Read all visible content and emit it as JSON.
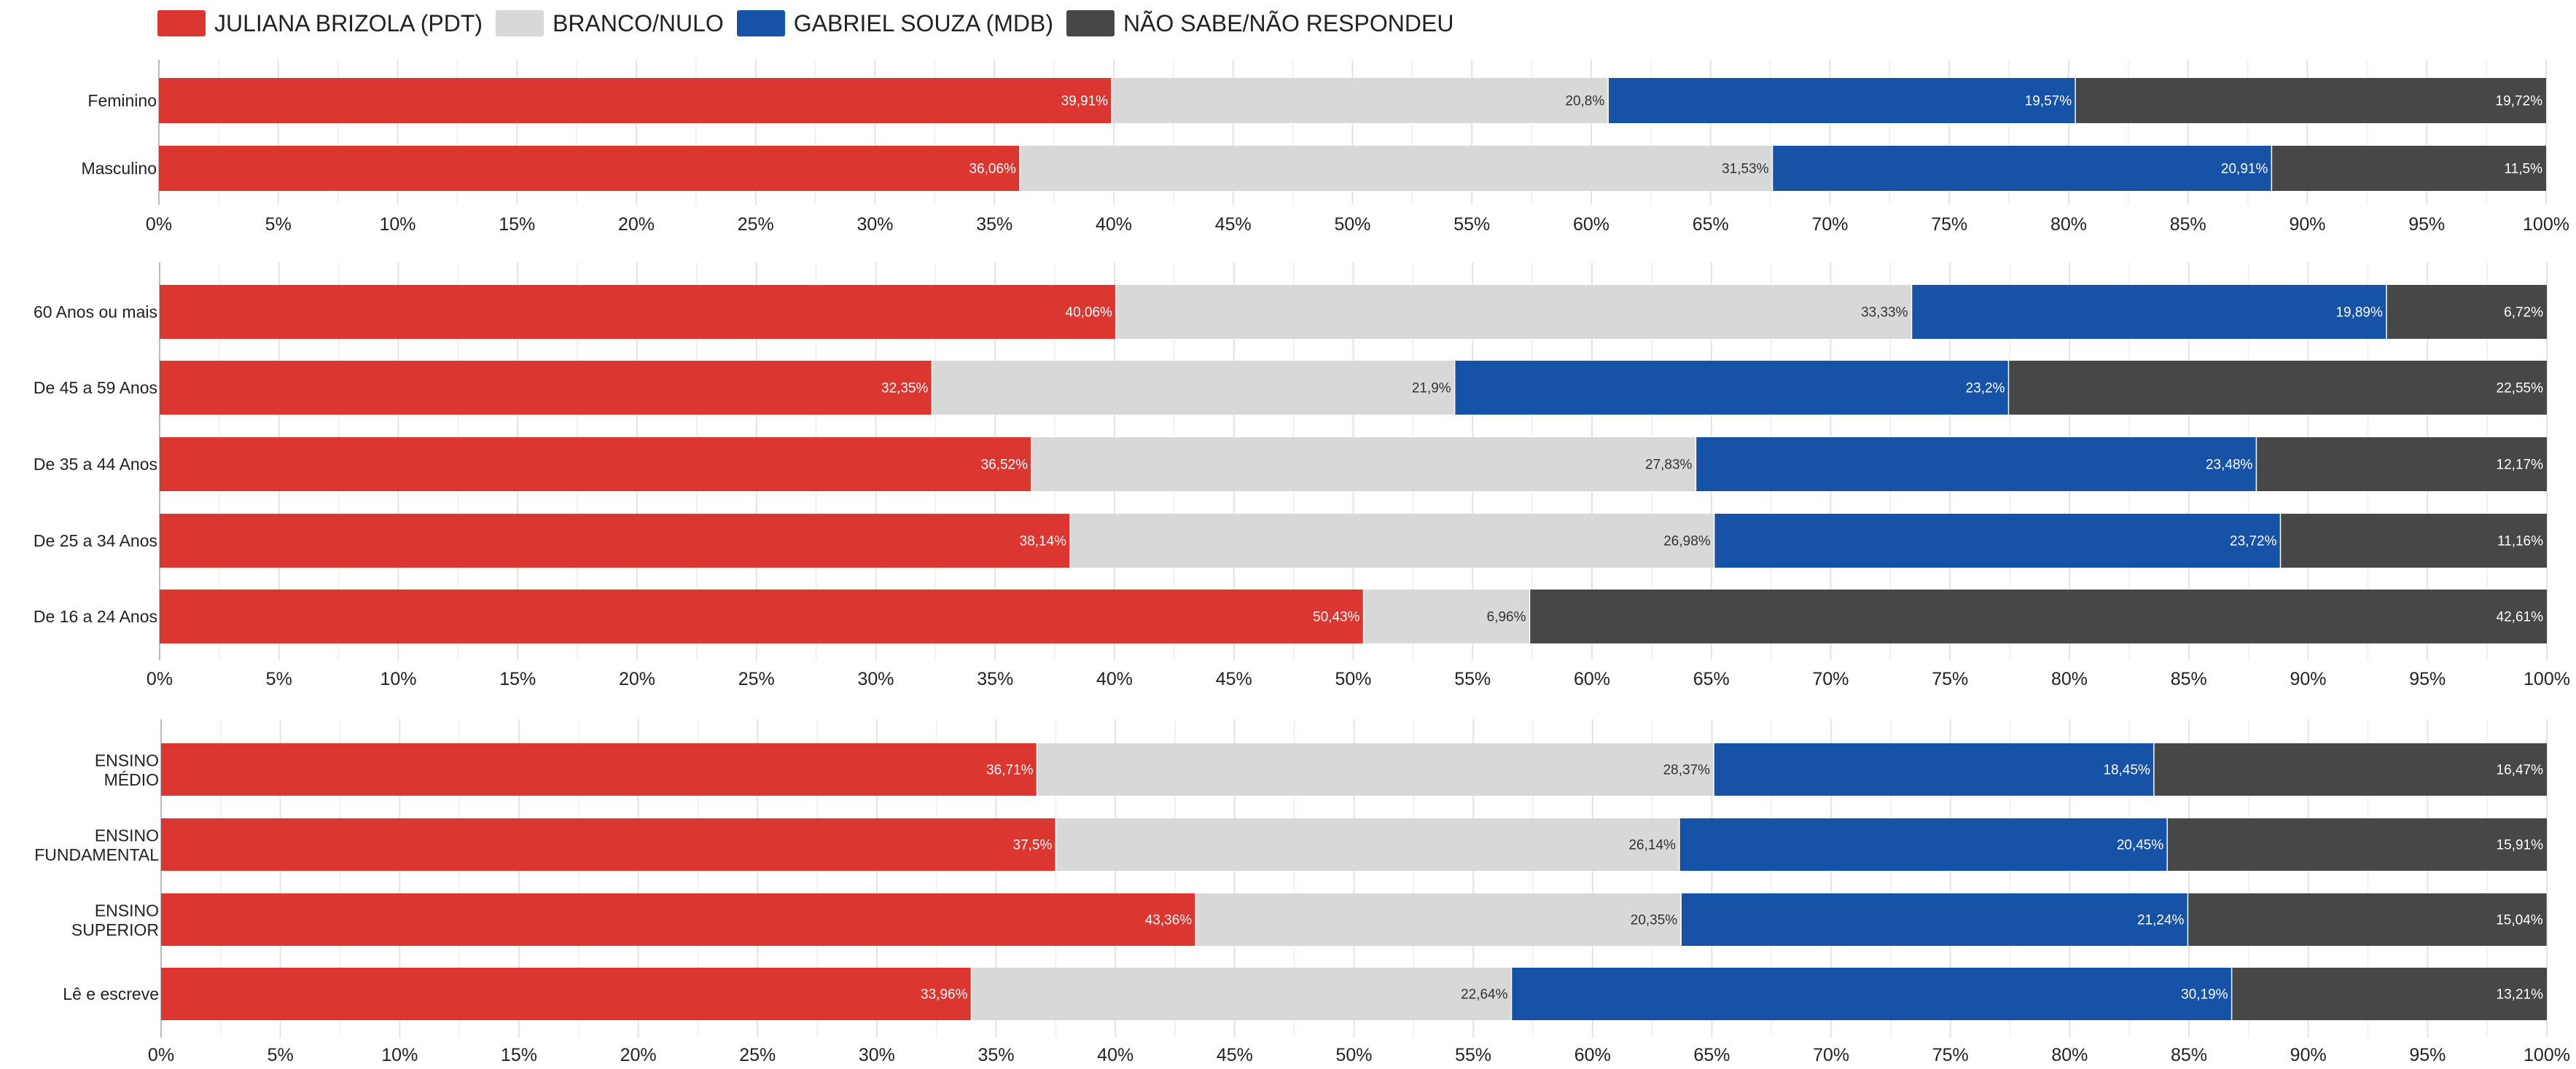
{
  "legend": {
    "items": [
      {
        "label": "JULIANA BRIZOLA (PDT)",
        "color": "#DC3630"
      },
      {
        "label": "BRANCO/NULO",
        "color": "#D8D8D8"
      },
      {
        "label": "GABRIEL SOUZA (MDB)",
        "color": "#1653A7"
      },
      {
        "label": "NÃO SABE/NÃO RESPONDEU",
        "color": "#474747"
      }
    ]
  },
  "chart_data": [
    {
      "type": "bar",
      "orientation": "horizontal",
      "stacked": true,
      "categories": [
        "Feminino",
        "Masculino"
      ],
      "series": [
        {
          "name": "JULIANA BRIZOLA (PDT)",
          "values": [
            39.91,
            36.06
          ],
          "labels": [
            "39,91%",
            "36,06%"
          ]
        },
        {
          "name": "BRANCO/NULO",
          "values": [
            20.8,
            31.53
          ],
          "labels": [
            "20,8%",
            "31,53%"
          ]
        },
        {
          "name": "GABRIEL SOUZA (MDB)",
          "values": [
            19.57,
            20.91
          ],
          "labels": [
            "19,57%",
            "20,91%"
          ]
        },
        {
          "name": "NÃO SABE/NÃO RESPONDEU",
          "values": [
            19.72,
            11.5
          ],
          "labels": [
            "19,72%",
            "11,5%"
          ]
        }
      ],
      "xlim": [
        0,
        100
      ],
      "xticks": [
        "0%",
        "5%",
        "10%",
        "15%",
        "20%",
        "25%",
        "30%",
        "35%",
        "40%",
        "45%",
        "50%",
        "55%",
        "60%",
        "65%",
        "70%",
        "75%",
        "80%",
        "85%",
        "90%",
        "95%",
        "100%"
      ],
      "grid": true
    },
    {
      "type": "bar",
      "orientation": "horizontal",
      "stacked": true,
      "categories": [
        "60 Anos ou mais",
        "De 45 a 59 Anos",
        "De 35 a 44 Anos",
        "De 25 a 34 Anos",
        "De 16 a 24 Anos"
      ],
      "series": [
        {
          "name": "JULIANA BRIZOLA (PDT)",
          "values": [
            40.06,
            32.35,
            36.52,
            38.14,
            50.43
          ],
          "labels": [
            "40,06%",
            "32,35%",
            "36,52%",
            "38,14%",
            "50,43%"
          ]
        },
        {
          "name": "BRANCO/NULO",
          "values": [
            33.33,
            21.9,
            27.83,
            26.98,
            6.96
          ],
          "labels": [
            "33,33%",
            "21,9%",
            "27,83%",
            "26,98%",
            "6,96%"
          ]
        },
        {
          "name": "GABRIEL SOUZA (MDB)",
          "values": [
            19.89,
            23.2,
            23.48,
            23.72,
            0
          ],
          "labels": [
            "19,89%",
            "23,2%",
            "23,48%",
            "23,72%",
            ""
          ]
        },
        {
          "name": "NÃO SABE/NÃO RESPONDEU",
          "values": [
            6.72,
            22.55,
            12.17,
            11.16,
            42.61
          ],
          "labels": [
            "6,72%",
            "22,55%",
            "12,17%",
            "11,16%",
            "42,61%"
          ]
        }
      ],
      "xlim": [
        0,
        100
      ],
      "xticks": [
        "0%",
        "5%",
        "10%",
        "15%",
        "20%",
        "25%",
        "30%",
        "35%",
        "40%",
        "45%",
        "50%",
        "55%",
        "60%",
        "65%",
        "70%",
        "75%",
        "80%",
        "85%",
        "90%",
        "95%",
        "100%"
      ],
      "grid": true
    },
    {
      "type": "bar",
      "orientation": "horizontal",
      "stacked": true,
      "categories": [
        "ENSINO MÉDIO",
        "ENSINO FUNDAMENTAL",
        "ENSINO SUPERIOR",
        "Lê e escreve"
      ],
      "series": [
        {
          "name": "JULIANA BRIZOLA (PDT)",
          "values": [
            36.71,
            37.5,
            43.36,
            33.96
          ],
          "labels": [
            "36,71%",
            "37,5%",
            "43,36%",
            "33,96%"
          ]
        },
        {
          "name": "BRANCO/NULO",
          "values": [
            28.37,
            26.14,
            20.35,
            22.64
          ],
          "labels": [
            "28,37%",
            "26,14%",
            "20,35%",
            "22,64%"
          ]
        },
        {
          "name": "GABRIEL SOUZA (MDB)",
          "values": [
            18.45,
            20.45,
            21.24,
            30.19
          ],
          "labels": [
            "18,45%",
            "20,45%",
            "21,24%",
            "30,19%"
          ]
        },
        {
          "name": "NÃO SABE/NÃO RESPONDEU",
          "values": [
            16.47,
            15.91,
            15.04,
            13.21
          ],
          "labels": [
            "16,47%",
            "15,91%",
            "15,04%",
            "13,21%"
          ]
        }
      ],
      "xlim": [
        0,
        100
      ],
      "xticks": [
        "0%",
        "5%",
        "10%",
        "15%",
        "20%",
        "25%",
        "30%",
        "35%",
        "40%",
        "45%",
        "50%",
        "55%",
        "60%",
        "65%",
        "70%",
        "75%",
        "80%",
        "85%",
        "90%",
        "95%",
        "100%"
      ],
      "grid": true
    }
  ]
}
